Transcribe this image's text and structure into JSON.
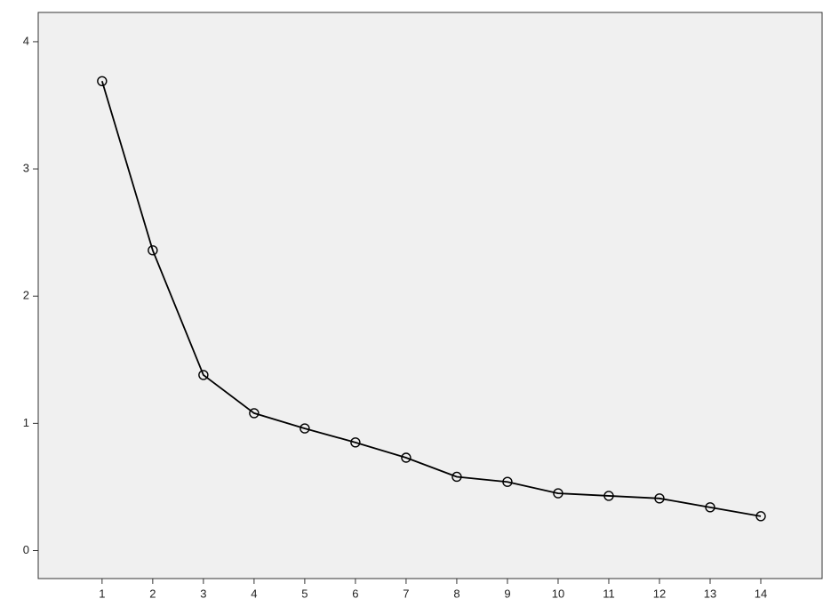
{
  "chart_data": {
    "type": "line",
    "x": [
      1,
      2,
      3,
      4,
      5,
      6,
      7,
      8,
      9,
      10,
      11,
      12,
      13,
      14
    ],
    "values": [
      3.69,
      2.36,
      1.38,
      1.08,
      0.96,
      0.85,
      0.73,
      0.58,
      0.54,
      0.45,
      0.43,
      0.41,
      0.34,
      0.27
    ],
    "color": "#000000",
    "xlim": [
      -0.26,
      15.21
    ],
    "xticks": [
      1,
      2,
      3,
      4,
      5,
      6,
      7,
      8,
      9,
      10,
      11,
      12,
      13,
      14
    ],
    "ylim": [
      -0.22,
      4.23
    ],
    "yticks": [
      0,
      1,
      2,
      3,
      4
    ]
  }
}
